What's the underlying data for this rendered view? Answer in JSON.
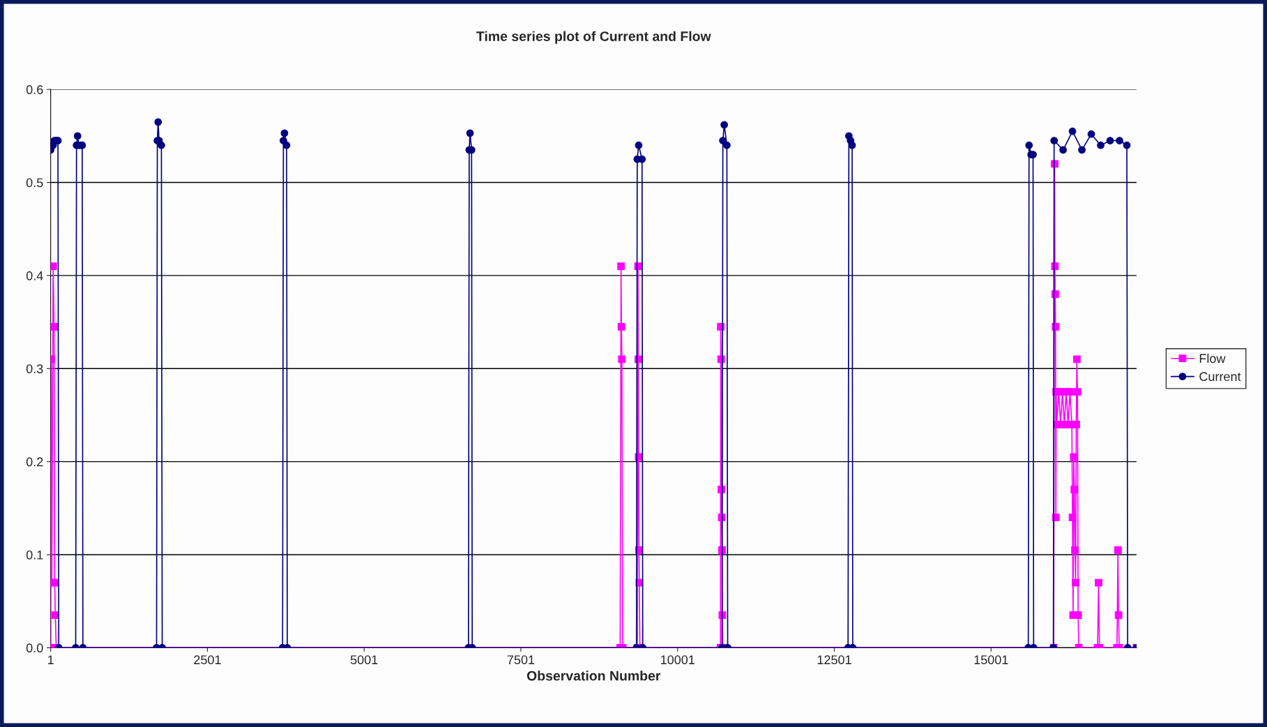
{
  "chart_data": {
    "type": "line",
    "title": "Time series plot of Current and Flow",
    "xlabel": "Observation Number",
    "xlim": [
      1,
      17321
    ],
    "xticks": [
      1,
      2501,
      5001,
      7501,
      10001,
      12501,
      15001
    ],
    "ylim": [
      0,
      0.6
    ],
    "yticks": [
      {
        "value": 0,
        "label": "0.0"
      },
      {
        "value": 0.1,
        "label": "0.1"
      },
      {
        "value": 0.2,
        "label": "0.2"
      },
      {
        "value": 0.3,
        "label": "0.3"
      },
      {
        "value": 0.4,
        "label": "0.4"
      },
      {
        "value": 0.5,
        "label": "0.5"
      },
      {
        "value": 0.6,
        "label": "0.6"
      }
    ],
    "grid": "y",
    "legend": "right",
    "line_style": "solid",
    "series": [
      {
        "name": "Flow",
        "color": "#ff00ff",
        "marker": "square",
        "x": [
          1,
          10,
          20,
          40,
          55,
          65,
          75,
          90,
          9085,
          9099,
          9105,
          9112,
          9125,
          9360,
          9370,
          9375,
          9380,
          9385,
          9390,
          9400,
          10685,
          10690,
          10695,
          10700,
          10705,
          10710,
          10715,
          10725,
          16000,
          16015,
          16020,
          16025,
          16030,
          16035,
          16040,
          16050,
          16080,
          16110,
          16140,
          16170,
          16200,
          16230,
          16260,
          16290,
          16300,
          16310,
          16320,
          16330,
          16340,
          16350,
          16360,
          16370,
          16380,
          16390,
          16400,
          16700,
          16716,
          16730,
          17010,
          17025,
          17035,
          17045,
          17321
        ],
        "values": [
          0,
          0.31,
          0.07,
          0.41,
          0.345,
          0.07,
          0.035,
          0,
          0,
          0.41,
          0.345,
          0.31,
          0,
          0,
          0.41,
          0.31,
          0.205,
          0.105,
          0.07,
          0,
          0,
          0.345,
          0.31,
          0.17,
          0.14,
          0.105,
          0.035,
          0,
          0,
          0.52,
          0.41,
          0.38,
          0.345,
          0.14,
          0.275,
          0.24,
          0.275,
          0.24,
          0.275,
          0.24,
          0.275,
          0.24,
          0.275,
          0.24,
          0.14,
          0.035,
          0.205,
          0.17,
          0.105,
          0.07,
          0.24,
          0.31,
          0.275,
          0.035,
          0,
          0,
          0.07,
          0,
          0,
          0.105,
          0.035,
          0,
          0
        ]
      },
      {
        "name": "Current",
        "color": "#000080",
        "marker": "circle",
        "x": [
          1,
          20,
          40,
          60,
          80,
          100,
          117,
          130,
          400,
          413,
          430,
          450,
          480,
          504,
          515,
          1690,
          1702,
          1715,
          1730,
          1767,
          1780,
          3700,
          3713,
          3730,
          3764,
          3775,
          6665,
          6677,
          6690,
          6715,
          6725,
          9345,
          9357,
          9380,
          9434,
          9445,
          10710,
          10723,
          10745,
          10787,
          10800,
          12720,
          12733,
          12760,
          12785,
          12795,
          15595,
          15607,
          15640,
          15671,
          15680,
          15995,
          16007,
          16150,
          16300,
          16450,
          16600,
          16750,
          16900,
          17050,
          17167,
          17180,
          17321
        ],
        "values": [
          0.535,
          0.54,
          0.54,
          0.545,
          0.545,
          0.545,
          0.545,
          0,
          0,
          0.54,
          0.55,
          0.54,
          0.54,
          0.54,
          0,
          0,
          0.545,
          0.565,
          0.545,
          0.54,
          0,
          0,
          0.545,
          0.553,
          0.54,
          0,
          0,
          0.535,
          0.553,
          0.535,
          0,
          0,
          0.525,
          0.54,
          0.525,
          0,
          0,
          0.545,
          0.562,
          0.54,
          0,
          0,
          0.55,
          0.545,
          0.54,
          0,
          0,
          0.54,
          0.53,
          0.53,
          0,
          0,
          0.545,
          0.535,
          0.555,
          0.535,
          0.552,
          0.54,
          0.545,
          0.545,
          0.54,
          0,
          0
        ]
      }
    ]
  }
}
